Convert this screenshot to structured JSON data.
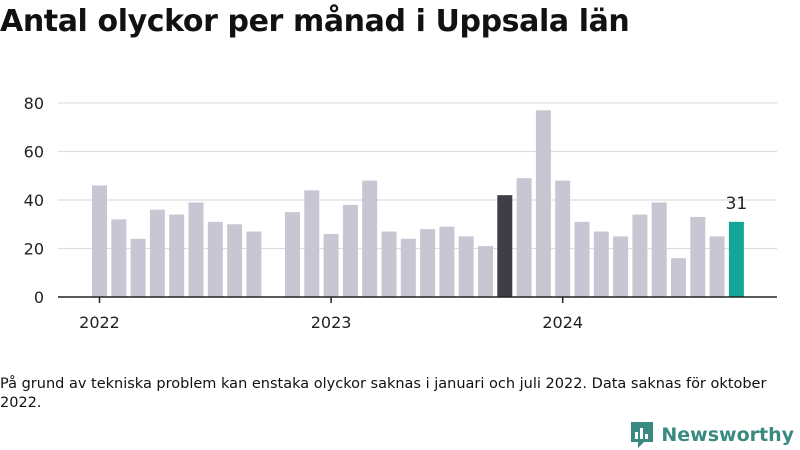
{
  "title": "Antal olyckor per månad i Uppsala län",
  "footnote": "På grund av tekniska problem kan enstaka olyckor saknas i januari och juli 2022. Data saknas för oktober 2022.",
  "brand": {
    "name": "Newsworthy"
  },
  "colors": {
    "bar": "#c9c6d3",
    "highlight_dark": "#3f3d47",
    "highlight_last": "#14a596",
    "grid": "#dddddd",
    "axis": "#222222",
    "brand": "#3a8a82"
  },
  "chart_data": {
    "type": "bar",
    "title": "Antal olyckor per månad i Uppsala län",
    "xlabel": "",
    "ylabel": "",
    "ylim": [
      0,
      80
    ],
    "yticks": [
      0,
      20,
      40,
      60,
      80
    ],
    "xtick_labels": [
      "2022",
      "2023",
      "2024"
    ],
    "grid": true,
    "categories": [
      "2022-01",
      "2022-02",
      "2022-03",
      "2022-04",
      "2022-05",
      "2022-06",
      "2022-07",
      "2022-08",
      "2022-09",
      "2022-10",
      "2022-11",
      "2022-12",
      "2023-01",
      "2023-02",
      "2023-03",
      "2023-04",
      "2023-05",
      "2023-06",
      "2023-07",
      "2023-08",
      "2023-09",
      "2023-10",
      "2023-11",
      "2023-12",
      "2024-01",
      "2024-02",
      "2024-03",
      "2024-04",
      "2024-05",
      "2024-06",
      "2024-07",
      "2024-08",
      "2024-09",
      "2024-10"
    ],
    "values": [
      46,
      32,
      24,
      36,
      34,
      39,
      31,
      30,
      27,
      null,
      35,
      44,
      26,
      38,
      48,
      27,
      24,
      28,
      29,
      25,
      21,
      42,
      49,
      77,
      48,
      31,
      27,
      25,
      34,
      39,
      16,
      33,
      25,
      31
    ],
    "highlighted": {
      "dark_index": 21,
      "last_index": 33
    },
    "data_labels": [
      {
        "index": 33,
        "text": "31"
      }
    ]
  }
}
